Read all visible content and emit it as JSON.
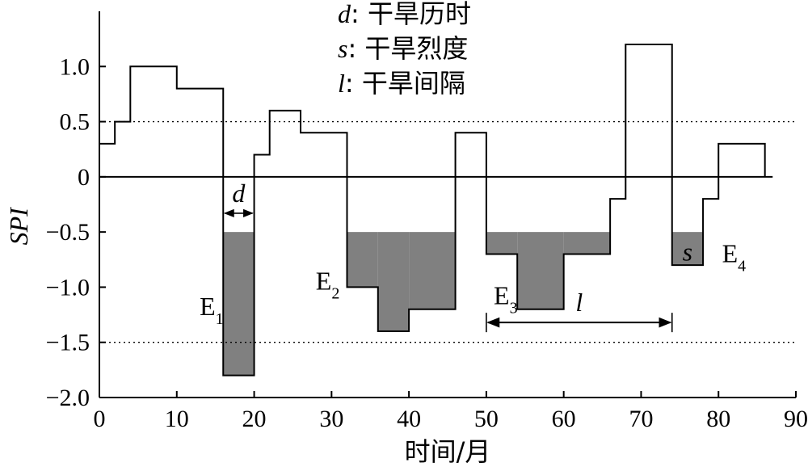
{
  "chart_data": {
    "type": "line",
    "xlabel": "时间/月",
    "ylabel": "SPI",
    "xlim": [
      0,
      90
    ],
    "ylim": [
      -2.0,
      1.5
    ],
    "x_ticks": [
      0,
      10,
      20,
      30,
      40,
      50,
      60,
      70,
      80,
      90
    ],
    "y_ticks": [
      1.0,
      0.5,
      0,
      -0.5,
      -1.0,
      -1.5,
      -2.0
    ],
    "y_tick_labels": [
      "1.0",
      "0.5",
      "0",
      "−0.5",
      "−1.0",
      "−1.5",
      "−2.0"
    ],
    "reference_lines": [
      0.5,
      -1.5
    ],
    "threshold": -0.5,
    "series": [
      {
        "step_segments": [
          {
            "x0": 0,
            "x1": 2,
            "y": 0.3
          },
          {
            "x0": 2,
            "x1": 4,
            "y": 0.5
          },
          {
            "x0": 4,
            "x1": 10,
            "y": 1.0
          },
          {
            "x0": 10,
            "x1": 16,
            "y": 0.8
          },
          {
            "x0": 16,
            "x1": 20,
            "y": -1.8
          },
          {
            "x0": 20,
            "x1": 22,
            "y": 0.2
          },
          {
            "x0": 22,
            "x1": 26,
            "y": 0.6
          },
          {
            "x0": 26,
            "x1": 32,
            "y": 0.4
          },
          {
            "x0": 32,
            "x1": 36,
            "y": -1.0
          },
          {
            "x0": 36,
            "x1": 40,
            "y": -1.4
          },
          {
            "x0": 40,
            "x1": 46,
            "y": -1.2
          },
          {
            "x0": 46,
            "x1": 50,
            "y": 0.4
          },
          {
            "x0": 50,
            "x1": 54,
            "y": -0.7
          },
          {
            "x0": 54,
            "x1": 60,
            "y": -1.2
          },
          {
            "x0": 60,
            "x1": 66,
            "y": -0.7
          },
          {
            "x0": 66,
            "x1": 68,
            "y": -0.2
          },
          {
            "x0": 68,
            "x1": 74,
            "y": 1.2
          },
          {
            "x0": 74,
            "x1": 78,
            "y": -0.8
          },
          {
            "x0": 78,
            "x1": 80,
            "y": -0.2
          },
          {
            "x0": 80,
            "x1": 86,
            "y": 0.3
          }
        ]
      }
    ],
    "drought_events": [
      {
        "label_main": "E",
        "label_sub": "1",
        "x_start": 16,
        "x_end": 20,
        "label_x": 14.5,
        "label_y": -1.18
      },
      {
        "label_main": "E",
        "label_sub": "2",
        "x_start": 32,
        "x_end": 46,
        "label_x": 29.5,
        "label_y": -0.95
      },
      {
        "label_main": "E",
        "label_sub": "3",
        "x_start": 50,
        "x_end": 66,
        "label_x": 52.5,
        "label_y": -1.08
      },
      {
        "label_main": "E",
        "label_sub": "4",
        "x_start": 74,
        "x_end": 78,
        "label_x": 82.0,
        "label_y": -0.7
      }
    ],
    "legend": [
      {
        "symbol": "d",
        "text": ": 干旱历时"
      },
      {
        "symbol": "s",
        "text": ": 干旱烈度"
      },
      {
        "symbol": "l",
        "text": ": 干旱间隔"
      }
    ],
    "annotations": {
      "d": {
        "label": "d",
        "x_start": 16,
        "x_end": 20,
        "y": -0.33
      },
      "s": {
        "label": "s",
        "x": 76,
        "y": -0.68
      },
      "l": {
        "label": "l",
        "x_start": 50,
        "x_end": 74,
        "y": -1.32
      }
    },
    "colors": {
      "fill": "#808080",
      "line": "#000000"
    }
  }
}
